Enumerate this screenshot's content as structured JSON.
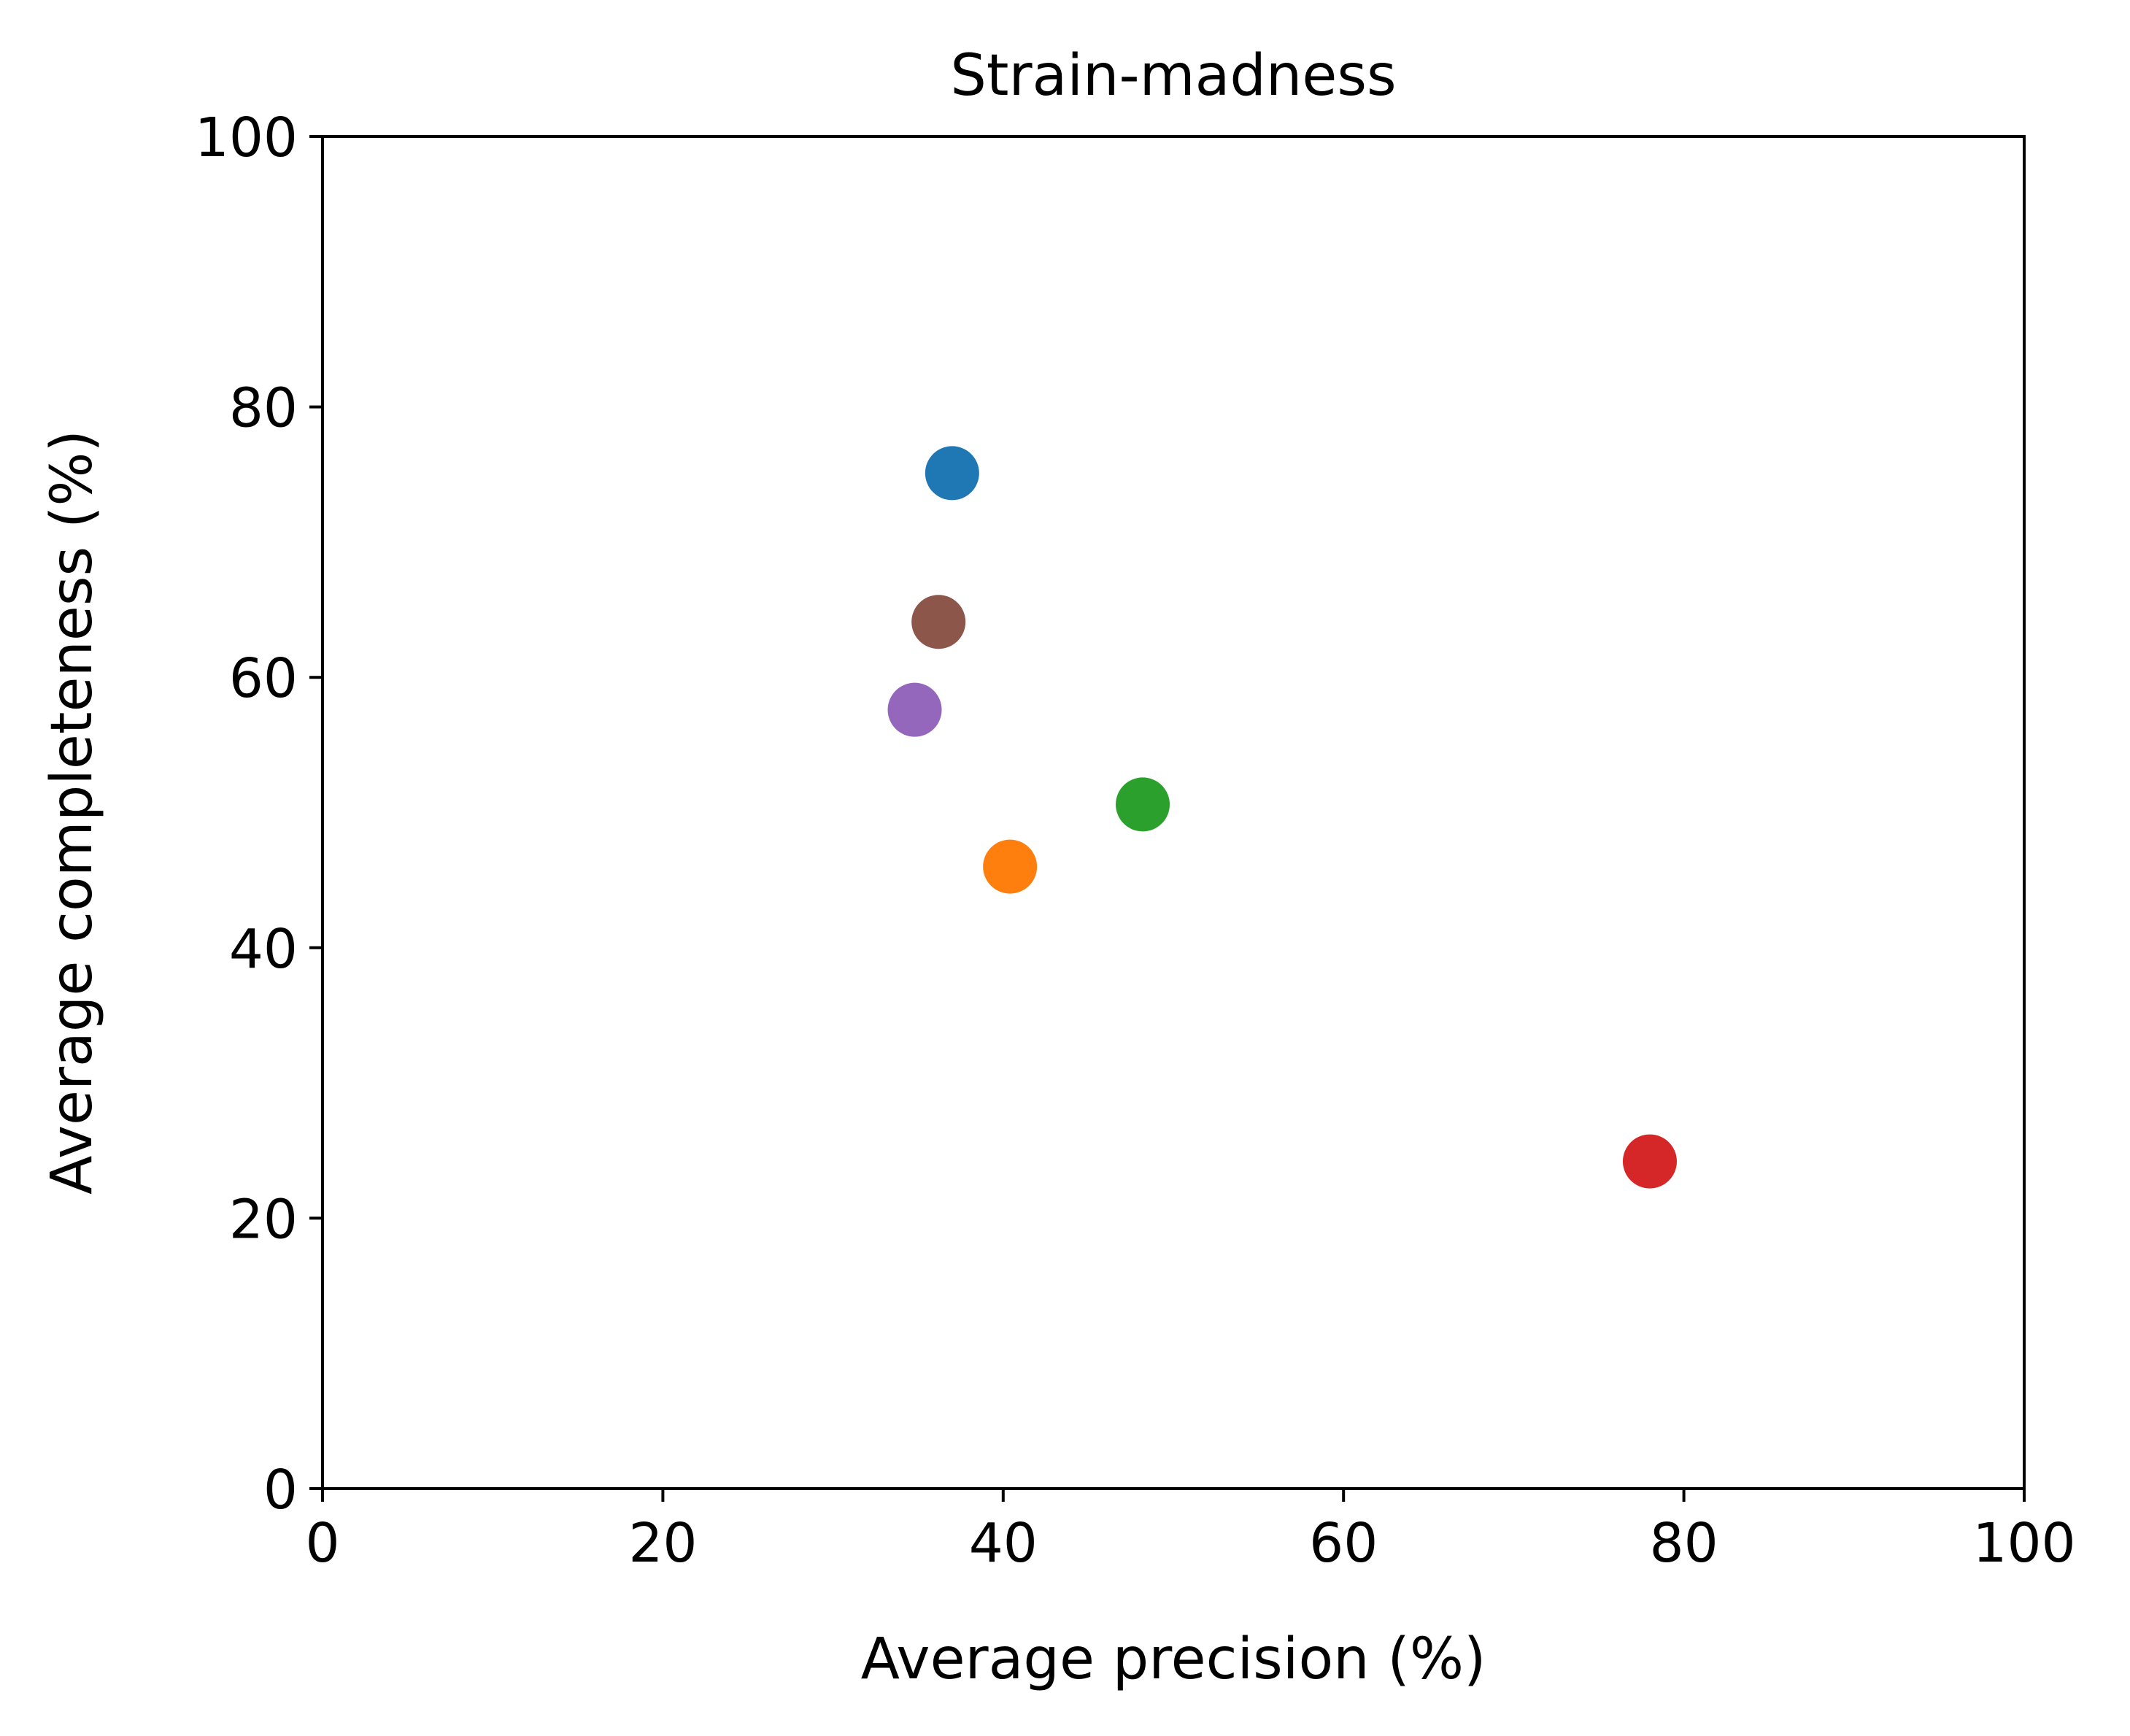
{
  "chart_data": {
    "type": "scatter",
    "title": "Strain-madness",
    "xlabel": "Average precision (%)",
    "ylabel": "Average completeness (%)",
    "xlim": [
      0,
      100
    ],
    "ylim": [
      0,
      100
    ],
    "xticks": [
      "0",
      "20",
      "40",
      "60",
      "80",
      "100"
    ],
    "yticks": [
      "0",
      "20",
      "40",
      "60",
      "80",
      "100"
    ],
    "grid": false,
    "series": [
      {
        "name": "point-1",
        "color": "#1f77b4",
        "x": 37.0,
        "y": 75.1
      },
      {
        "name": "point-2",
        "color": "#ff7f0e",
        "x": 40.4,
        "y": 46.0
      },
      {
        "name": "point-3",
        "color": "#2ca02c",
        "x": 48.2,
        "y": 50.6
      },
      {
        "name": "point-4",
        "color": "#d62728",
        "x": 78.0,
        "y": 24.2
      },
      {
        "name": "point-5",
        "color": "#9467bd",
        "x": 34.8,
        "y": 57.6
      },
      {
        "name": "point-6",
        "color": "#8c564b",
        "x": 36.2,
        "y": 64.1
      }
    ]
  }
}
